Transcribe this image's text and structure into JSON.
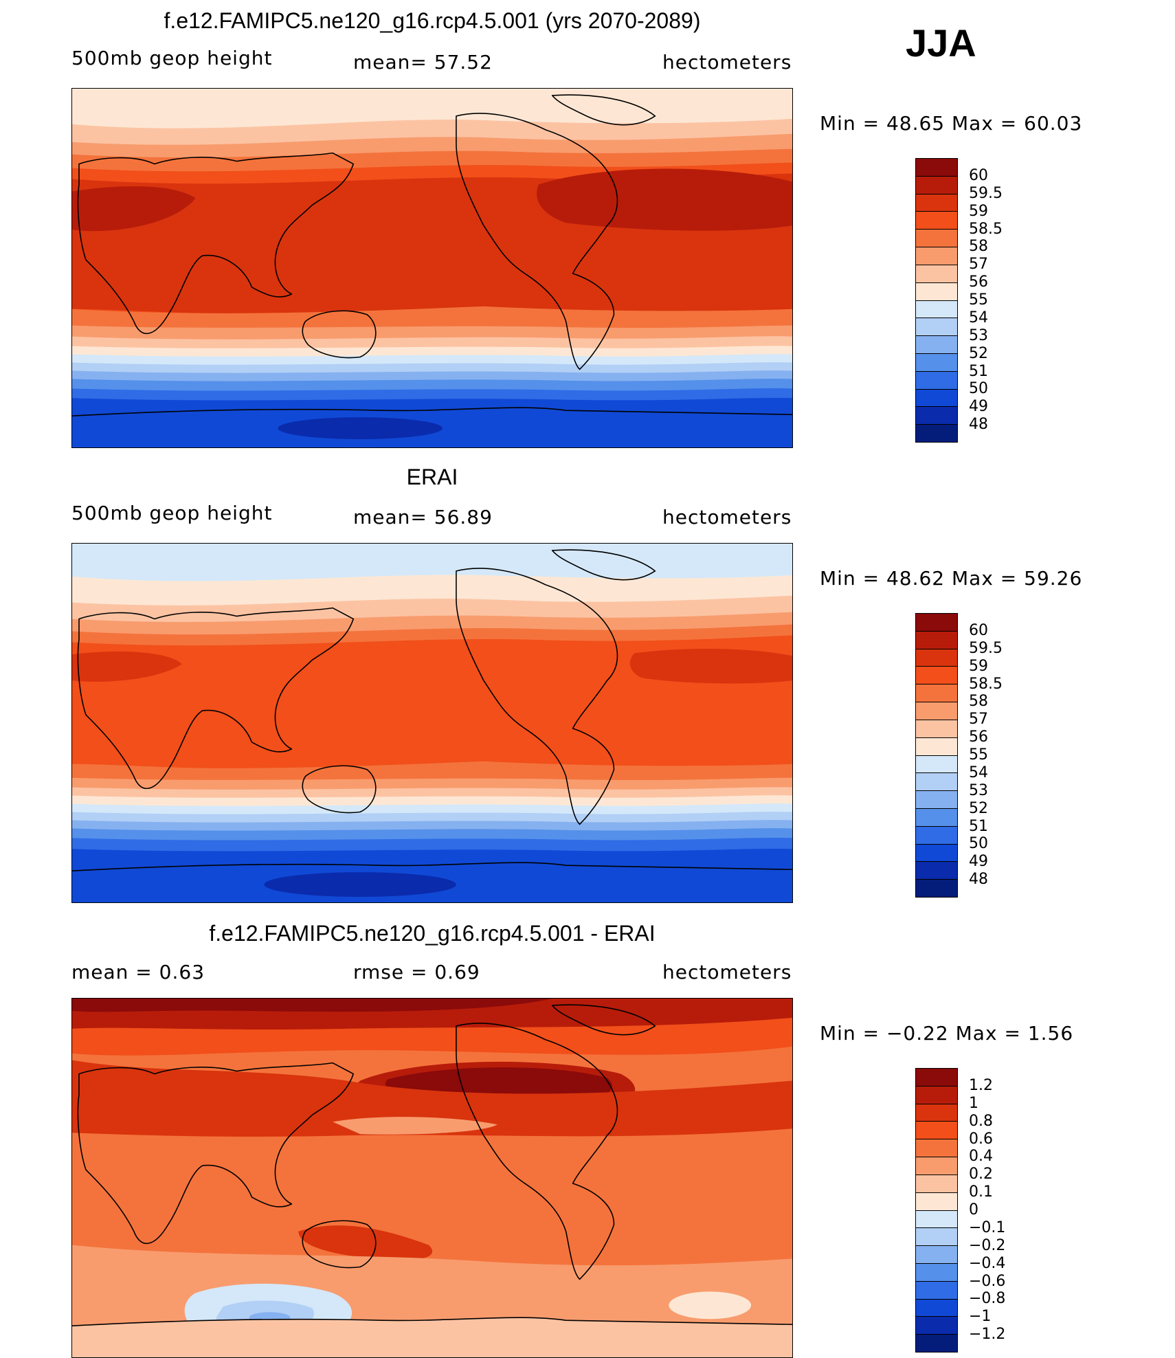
{
  "season": "JJA",
  "panels": [
    {
      "title": "f.e12.FAMIPC5.ne120_g16.rcp4.5.001 (yrs 2070-2089)",
      "left_label": "500mb  geop  height",
      "center_label": "mean=   57.52",
      "right_label": "hectometers",
      "minmax": "Min  =    48.65  Max  =    60.03",
      "colorbar": {
        "labels": [
          "60",
          "59.5",
          "59",
          "58.5",
          "58",
          "57",
          "56",
          "55",
          "54",
          "53",
          "52",
          "51",
          "50",
          "49",
          "48"
        ],
        "colors": [
          "#8b0a0a",
          "#b71c0a",
          "#d9340e",
          "#f24f1a",
          "#f4733c",
          "#f89c6e",
          "#fcc3a3",
          "#fde7d4",
          "#d4e8f9",
          "#b2cff5",
          "#86b1f0",
          "#5590ea",
          "#2f6ce6",
          "#1049d6",
          "#0a2bac",
          "#051d7a"
        ]
      }
    },
    {
      "title": "ERAI",
      "left_label": "500mb  geop  height",
      "center_label": "mean=   56.89",
      "right_label": "hectometers",
      "minmax": "Min  =    48.62  Max  =    59.26",
      "colorbar": {
        "labels": [
          "60",
          "59.5",
          "59",
          "58.5",
          "58",
          "57",
          "56",
          "55",
          "54",
          "53",
          "52",
          "51",
          "50",
          "49",
          "48"
        ],
        "colors": [
          "#8b0a0a",
          "#b71c0a",
          "#d9340e",
          "#f24f1a",
          "#f4733c",
          "#f89c6e",
          "#fcc3a3",
          "#fde7d4",
          "#d4e8f9",
          "#b2cff5",
          "#86b1f0",
          "#5590ea",
          "#2f6ce6",
          "#1049d6",
          "#0a2bac",
          "#051d7a"
        ]
      }
    },
    {
      "title": "f.e12.FAMIPC5.ne120_g16.rcp4.5.001 - ERAI",
      "left_label": "mean  =     0.63",
      "center_label": "rmse  =     0.69",
      "right_label": "hectometers",
      "minmax": "Min  =   −0.22  Max  =      1.56",
      "colorbar": {
        "labels": [
          "1.2",
          "1",
          "0.8",
          "0.6",
          "0.4",
          "0.2",
          "0.1",
          "0",
          "−0.1",
          "−0.2",
          "−0.4",
          "−0.6",
          "−0.8",
          "−1",
          "−1.2"
        ],
        "colors": [
          "#8b0a0a",
          "#b71c0a",
          "#d9340e",
          "#f24f1a",
          "#f4733c",
          "#f89c6e",
          "#fcc3a3",
          "#fde7d4",
          "#d4e8f9",
          "#b2cff5",
          "#86b1f0",
          "#5590ea",
          "#2f6ce6",
          "#1049d6",
          "#0a2bac",
          "#051d7a"
        ]
      }
    }
  ]
}
